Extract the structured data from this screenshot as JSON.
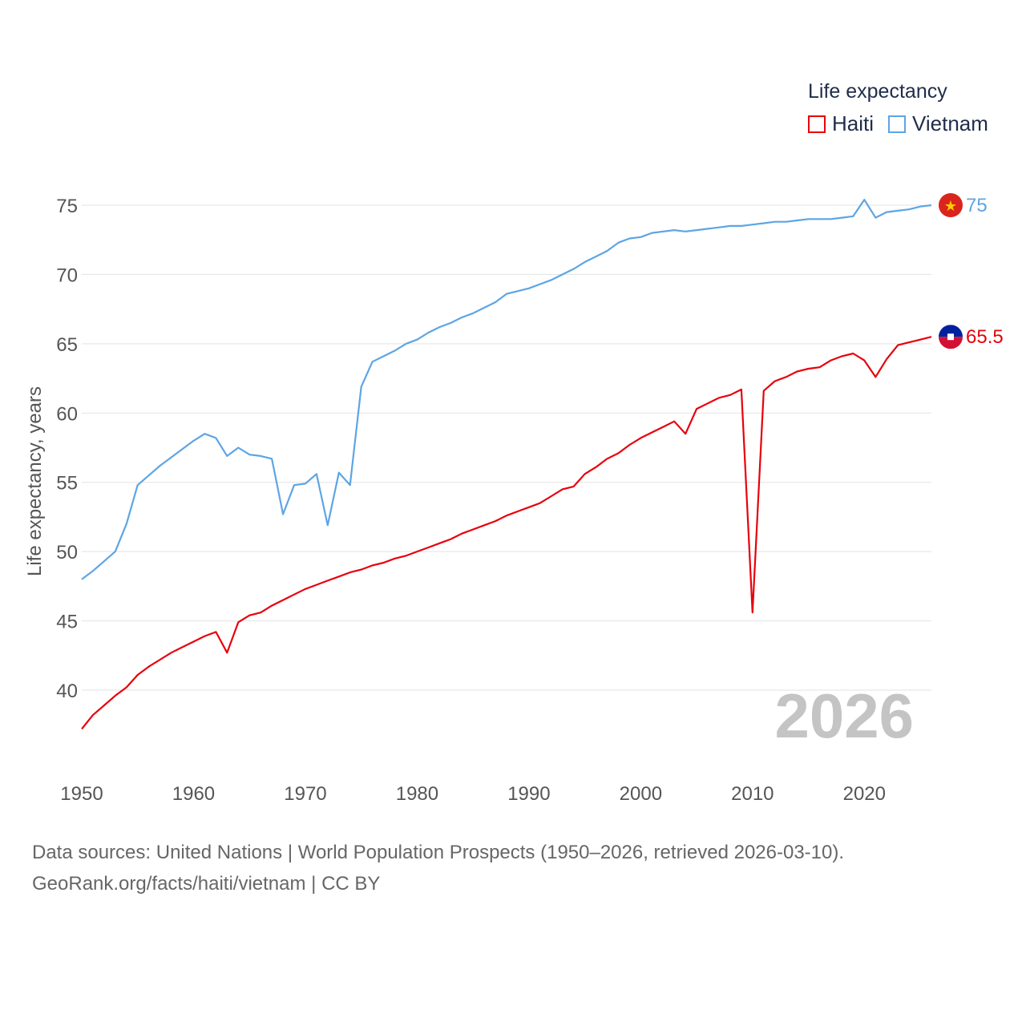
{
  "chart_data": {
    "type": "line",
    "ylabel": "Life expectancy, years",
    "xlabel": "",
    "legend_title": "Life expectancy",
    "legend_position": "top-right",
    "current_year_label": "2026",
    "xlim": [
      1950,
      2026
    ],
    "ylim": [
      35,
      78
    ],
    "x_ticks": [
      1950,
      1960,
      1970,
      1980,
      1990,
      2000,
      2010,
      2020
    ],
    "y_ticks": [
      40,
      45,
      50,
      55,
      60,
      65,
      70,
      75
    ],
    "grid": true,
    "series": [
      {
        "name": "Haiti",
        "color": "#e8000b",
        "end_label": "65.5",
        "x": [
          1950,
          1951,
          1952,
          1953,
          1954,
          1955,
          1956,
          1957,
          1958,
          1959,
          1960,
          1961,
          1962,
          1963,
          1964,
          1965,
          1966,
          1967,
          1968,
          1969,
          1970,
          1971,
          1972,
          1973,
          1974,
          1975,
          1976,
          1977,
          1978,
          1979,
          1980,
          1981,
          1982,
          1983,
          1984,
          1985,
          1986,
          1987,
          1988,
          1989,
          1990,
          1991,
          1992,
          1993,
          1994,
          1995,
          1996,
          1997,
          1998,
          1999,
          2000,
          2001,
          2002,
          2003,
          2004,
          2005,
          2006,
          2007,
          2008,
          2009,
          2010,
          2011,
          2012,
          2013,
          2014,
          2015,
          2016,
          2017,
          2018,
          2019,
          2020,
          2021,
          2022,
          2023,
          2024,
          2025,
          2026
        ],
        "values": [
          37.2,
          38.2,
          38.9,
          39.6,
          40.2,
          41.1,
          41.7,
          42.2,
          42.7,
          43.1,
          43.5,
          43.9,
          44.2,
          42.7,
          44.9,
          45.4,
          45.6,
          46.1,
          46.5,
          46.9,
          47.3,
          47.6,
          47.9,
          48.2,
          48.5,
          48.7,
          49.0,
          49.2,
          49.5,
          49.7,
          50.0,
          50.3,
          50.6,
          50.9,
          51.3,
          51.6,
          51.9,
          52.2,
          52.6,
          52.9,
          53.2,
          53.5,
          54.0,
          54.5,
          54.7,
          55.6,
          56.1,
          56.7,
          57.1,
          57.7,
          58.2,
          58.6,
          59.0,
          59.4,
          58.5,
          60.3,
          60.7,
          61.1,
          61.3,
          61.7,
          45.6,
          61.6,
          62.3,
          62.6,
          63.0,
          63.2,
          63.3,
          63.8,
          64.1,
          64.3,
          63.8,
          62.6,
          63.9,
          64.9,
          65.1,
          65.3,
          65.5
        ]
      },
      {
        "name": "Vietnam",
        "color": "#5da5e4",
        "end_label": "75",
        "x": [
          1950,
          1951,
          1952,
          1953,
          1954,
          1955,
          1956,
          1957,
          1958,
          1959,
          1960,
          1961,
          1962,
          1963,
          1964,
          1965,
          1966,
          1967,
          1968,
          1969,
          1970,
          1971,
          1972,
          1973,
          1974,
          1975,
          1976,
          1977,
          1978,
          1979,
          1980,
          1981,
          1982,
          1983,
          1984,
          1985,
          1986,
          1987,
          1988,
          1989,
          1990,
          1991,
          1992,
          1993,
          1994,
          1995,
          1996,
          1997,
          1998,
          1999,
          2000,
          2001,
          2002,
          2003,
          2004,
          2005,
          2006,
          2007,
          2008,
          2009,
          2010,
          2011,
          2012,
          2013,
          2014,
          2015,
          2016,
          2017,
          2018,
          2019,
          2020,
          2021,
          2022,
          2023,
          2024,
          2025,
          2026
        ],
        "values": [
          48.0,
          48.6,
          49.3,
          50.0,
          52.0,
          54.8,
          55.5,
          56.2,
          56.8,
          57.4,
          58.0,
          58.5,
          58.2,
          56.9,
          57.5,
          57.0,
          56.9,
          56.7,
          52.7,
          54.8,
          54.9,
          55.6,
          51.9,
          55.7,
          54.8,
          61.9,
          63.7,
          64.1,
          64.5,
          65.0,
          65.3,
          65.8,
          66.2,
          66.5,
          66.9,
          67.2,
          67.6,
          68.0,
          68.6,
          68.8,
          69.0,
          69.3,
          69.6,
          70.0,
          70.4,
          70.9,
          71.3,
          71.7,
          72.3,
          72.6,
          72.7,
          73.0,
          73.1,
          73.2,
          73.1,
          73.2,
          73.3,
          73.4,
          73.5,
          73.5,
          73.6,
          73.7,
          73.8,
          73.8,
          73.9,
          74.0,
          74.0,
          74.0,
          74.1,
          74.2,
          75.4,
          74.1,
          74.5,
          74.6,
          74.7,
          74.9,
          75.0
        ]
      }
    ]
  },
  "footer": {
    "sources": "Data sources: United Nations | World Population Prospects (1950–2026, retrieved 2026-03-10).",
    "attribution": "GeoRank.org/facts/haiti/vietnam | CC BY"
  }
}
